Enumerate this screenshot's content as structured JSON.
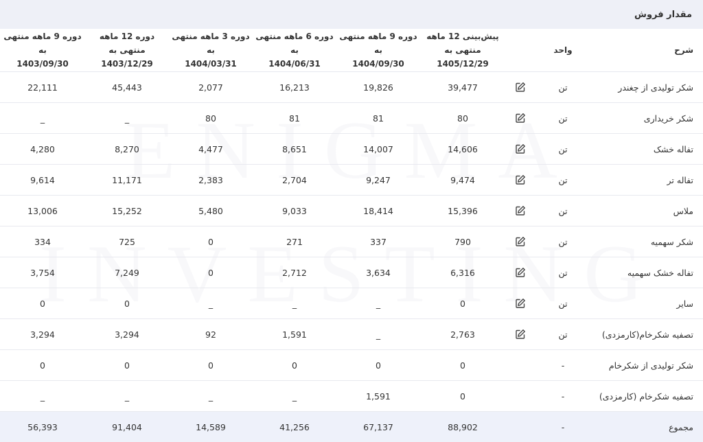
{
  "title": "مقدار فروش",
  "watermark": [
    "ENIGMA",
    "INVESTING"
  ],
  "table": {
    "label_header": "شرح",
    "unit_header": "واحد",
    "columns": [
      {
        "title": "پیش‌بینی 12 ماهه منتهی به",
        "date": "1405/12/29"
      },
      {
        "title": "دوره 9 ماهه منتهی به",
        "date": "1404/09/30"
      },
      {
        "title": "دوره 6 ماهه منتهی به",
        "date": "1404/06/31"
      },
      {
        "title": "دوره 3 ماهه منتهی به",
        "date": "1404/03/31"
      },
      {
        "title": "دوره 12 ماهه منتهی به",
        "date": "1403/12/29"
      },
      {
        "title": "دوره 9 ماهه منتهی به",
        "date": "1403/09/30"
      }
    ],
    "rows": [
      {
        "label": "شکر تولیدی از چغندر",
        "unit": "تن",
        "editable": true,
        "values": [
          "39,477",
          "19,826",
          "16,213",
          "2,077",
          "45,443",
          "22,111"
        ]
      },
      {
        "label": "شکر خریداری",
        "unit": "تن",
        "editable": true,
        "values": [
          "80",
          "81",
          "81",
          "80",
          "_",
          "_"
        ]
      },
      {
        "label": "تفاله خشک",
        "unit": "تن",
        "editable": true,
        "values": [
          "14,606",
          "14,007",
          "8,651",
          "4,477",
          "8,270",
          "4,280"
        ]
      },
      {
        "label": "تفاله تر",
        "unit": "تن",
        "editable": true,
        "values": [
          "9,474",
          "9,247",
          "2,704",
          "2,383",
          "11,171",
          "9,614"
        ]
      },
      {
        "label": "ملاس",
        "unit": "تن",
        "editable": true,
        "values": [
          "15,396",
          "18,414",
          "9,033",
          "5,480",
          "15,252",
          "13,006"
        ]
      },
      {
        "label": "شکر سهمیه",
        "unit": "تن",
        "editable": true,
        "values": [
          "790",
          "337",
          "271",
          "0",
          "725",
          "334"
        ]
      },
      {
        "label": "تفاله خشک سهمیه",
        "unit": "تن",
        "editable": true,
        "values": [
          "6,316",
          "3,634",
          "2,712",
          "0",
          "7,249",
          "3,754"
        ]
      },
      {
        "label": "سایر",
        "unit": "تن",
        "editable": true,
        "values": [
          "0",
          "_",
          "_",
          "_",
          "0",
          "0"
        ]
      },
      {
        "label": "تصفیه شکرخام(کارمزدی)",
        "unit": "تن",
        "editable": true,
        "values": [
          "2,763",
          "_",
          "1,591",
          "92",
          "3,294",
          "3,294"
        ]
      },
      {
        "label": "شکر تولیدی از شکرخام",
        "unit": "-",
        "editable": false,
        "values": [
          "0",
          "0",
          "0",
          "0",
          "0",
          "0"
        ]
      },
      {
        "label": "تصفیه شکرخام (کارمزدی)",
        "unit": "-",
        "editable": false,
        "values": [
          "0",
          "1,591",
          "_",
          "_",
          "_",
          "_"
        ]
      }
    ],
    "total": {
      "label": "مجموع",
      "unit": "-",
      "values": [
        "88,902",
        "67,137",
        "41,256",
        "14,589",
        "91,404",
        "56,393"
      ]
    }
  }
}
